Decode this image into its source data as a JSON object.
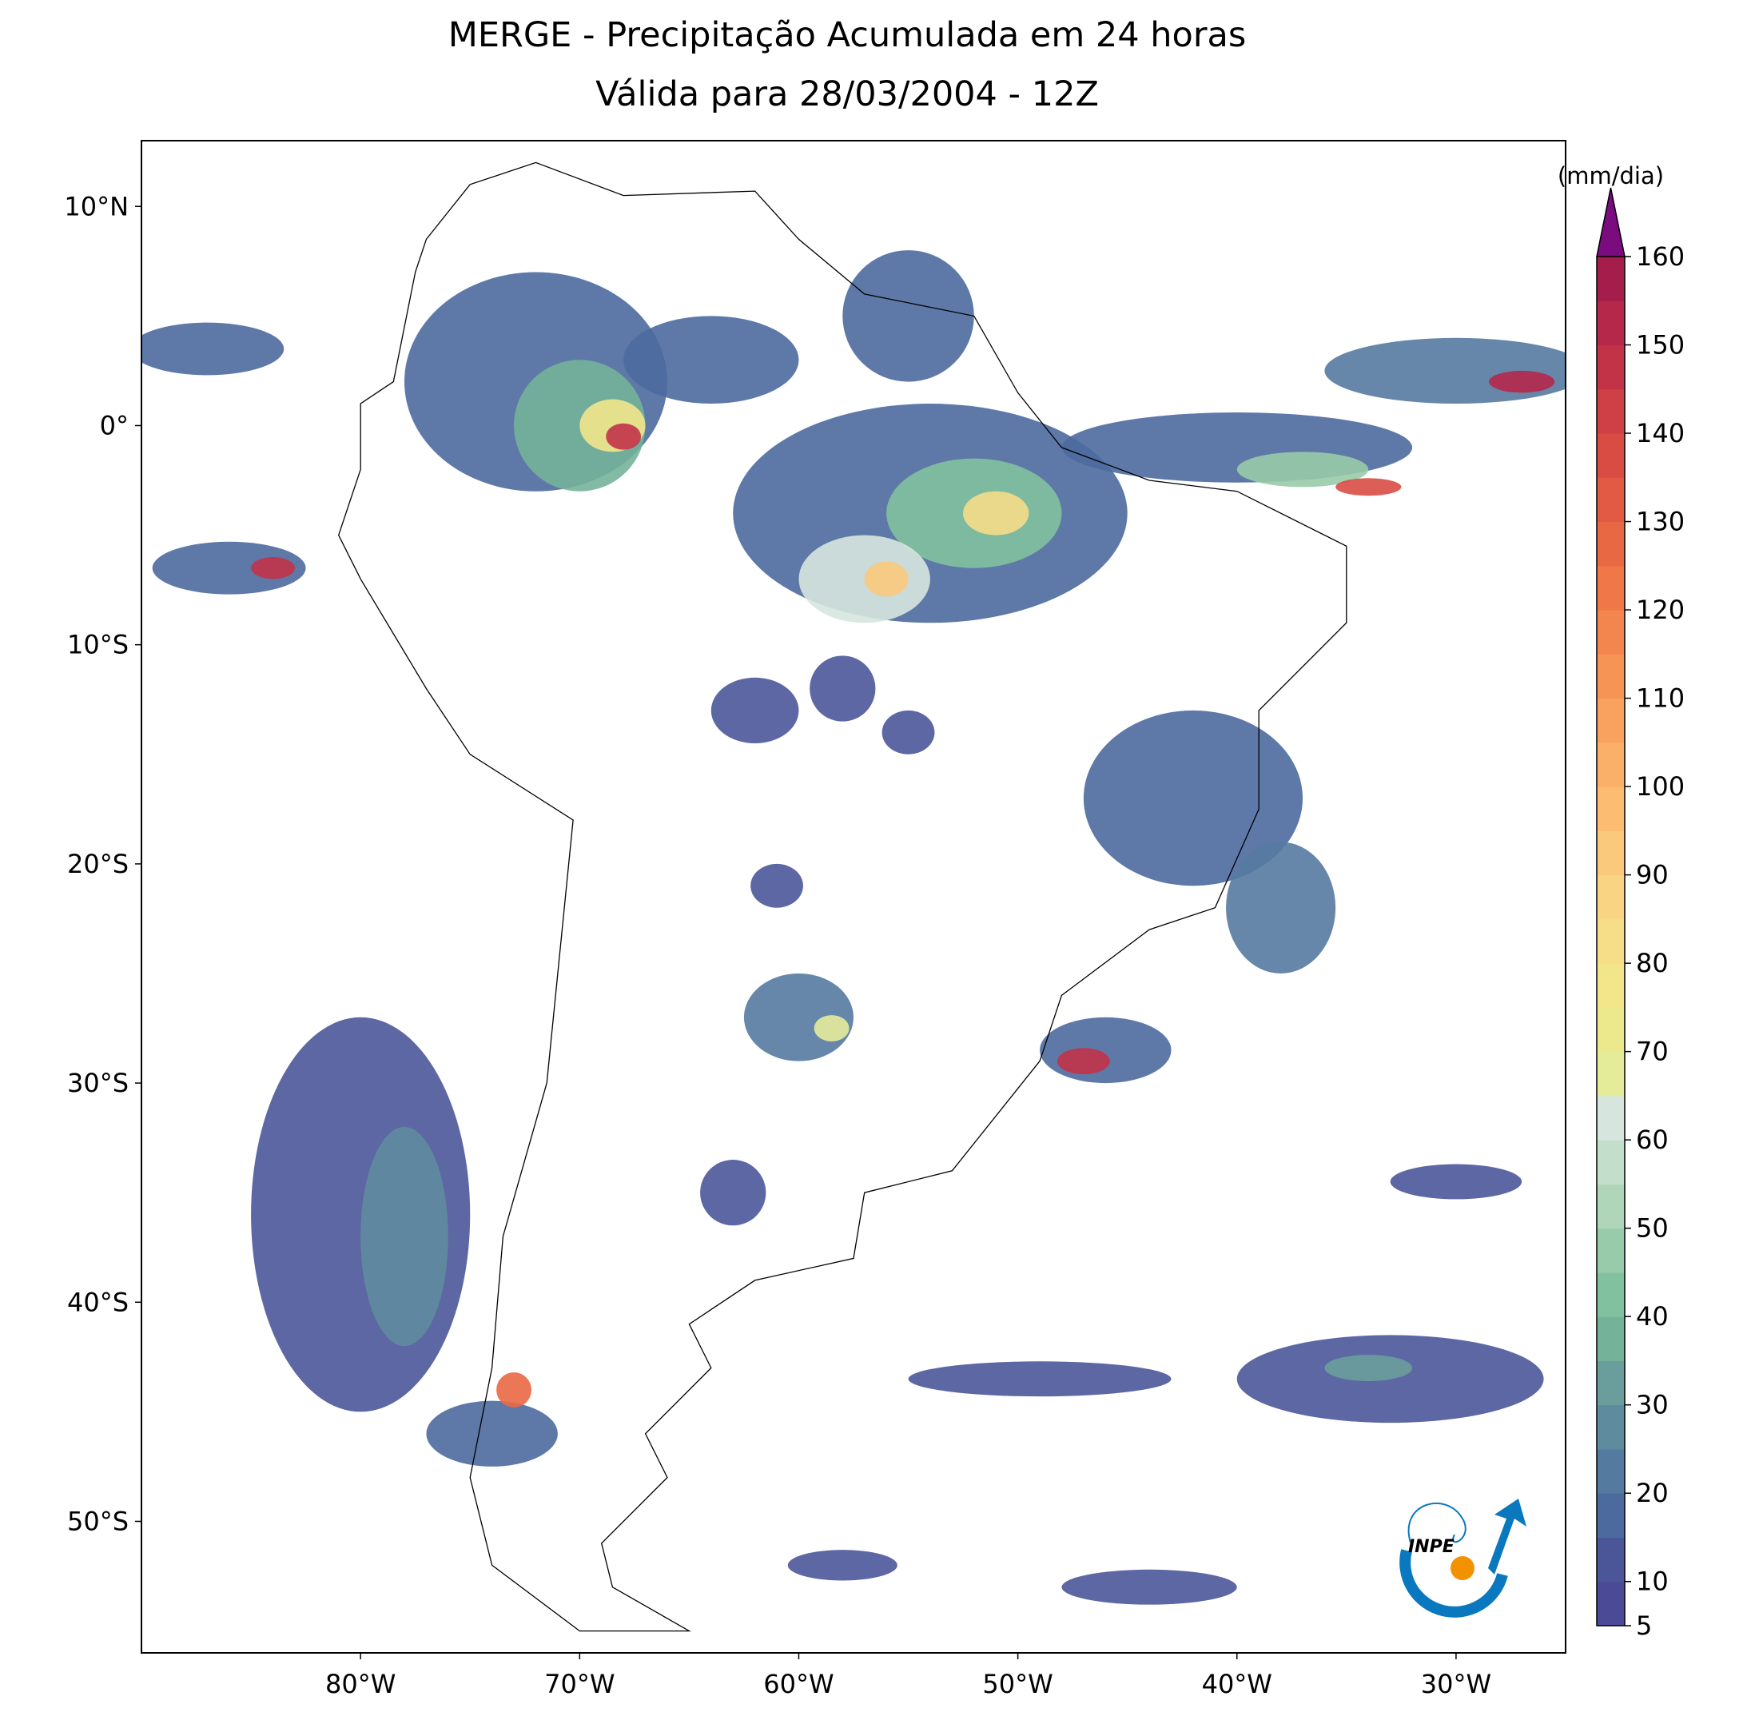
{
  "header": {
    "title": "MERGE - Precipitação Acumulada em 24 horas",
    "subtitle": "Válida para 28/03/2004 - 12Z"
  },
  "map": {
    "xlim": [
      -90,
      -25
    ],
    "ylim": [
      -56,
      13
    ],
    "xticks": [
      {
        "value": -80,
        "label": "80°W"
      },
      {
        "value": -70,
        "label": "70°W"
      },
      {
        "value": -60,
        "label": "60°W"
      },
      {
        "value": -50,
        "label": "50°W"
      },
      {
        "value": -40,
        "label": "40°W"
      },
      {
        "value": -30,
        "label": "30°W"
      }
    ],
    "yticks": [
      {
        "value": 10,
        "label": "10°N"
      },
      {
        "value": 0,
        "label": "0°"
      },
      {
        "value": -10,
        "label": "10°S"
      },
      {
        "value": -20,
        "label": "20°S"
      },
      {
        "value": -30,
        "label": "30°S"
      },
      {
        "value": -40,
        "label": "40°S"
      },
      {
        "value": -50,
        "label": "50°S"
      }
    ]
  },
  "colorbar": {
    "label": "(mm/dia)",
    "lim": [
      5,
      160
    ],
    "ticks": [
      5,
      10,
      20,
      30,
      40,
      50,
      60,
      70,
      80,
      90,
      100,
      110,
      120,
      130,
      140,
      150,
      160
    ],
    "levels": [
      5,
      10,
      15,
      20,
      25,
      30,
      35,
      40,
      45,
      50,
      55,
      60,
      65,
      70,
      75,
      80,
      85,
      90,
      95,
      100,
      105,
      110,
      115,
      120,
      125,
      130,
      135,
      140,
      145,
      150,
      155,
      160
    ],
    "colors": [
      "#4a4a96",
      "#4b5699",
      "#4d6a9e",
      "#557aa0",
      "#5f8b9f",
      "#6a9e9c",
      "#74b39a",
      "#82c19f",
      "#98cba9",
      "#afd6b8",
      "#c3dfcb",
      "#d6e6de",
      "#e4ec9a",
      "#ebe98c",
      "#f2e58a",
      "#f6dd87",
      "#f9d482",
      "#fbc97c",
      "#fcbc72",
      "#fbb06a",
      "#f9a25f",
      "#f69456",
      "#f3864e",
      "#ef7748",
      "#e96844",
      "#e25a43",
      "#d94c44",
      "#ce3f46",
      "#c23348",
      "#b5284a",
      "#a51e4b"
    ],
    "extend_color": "#7b0c7f"
  },
  "logo": {
    "text": "INPE"
  }
}
